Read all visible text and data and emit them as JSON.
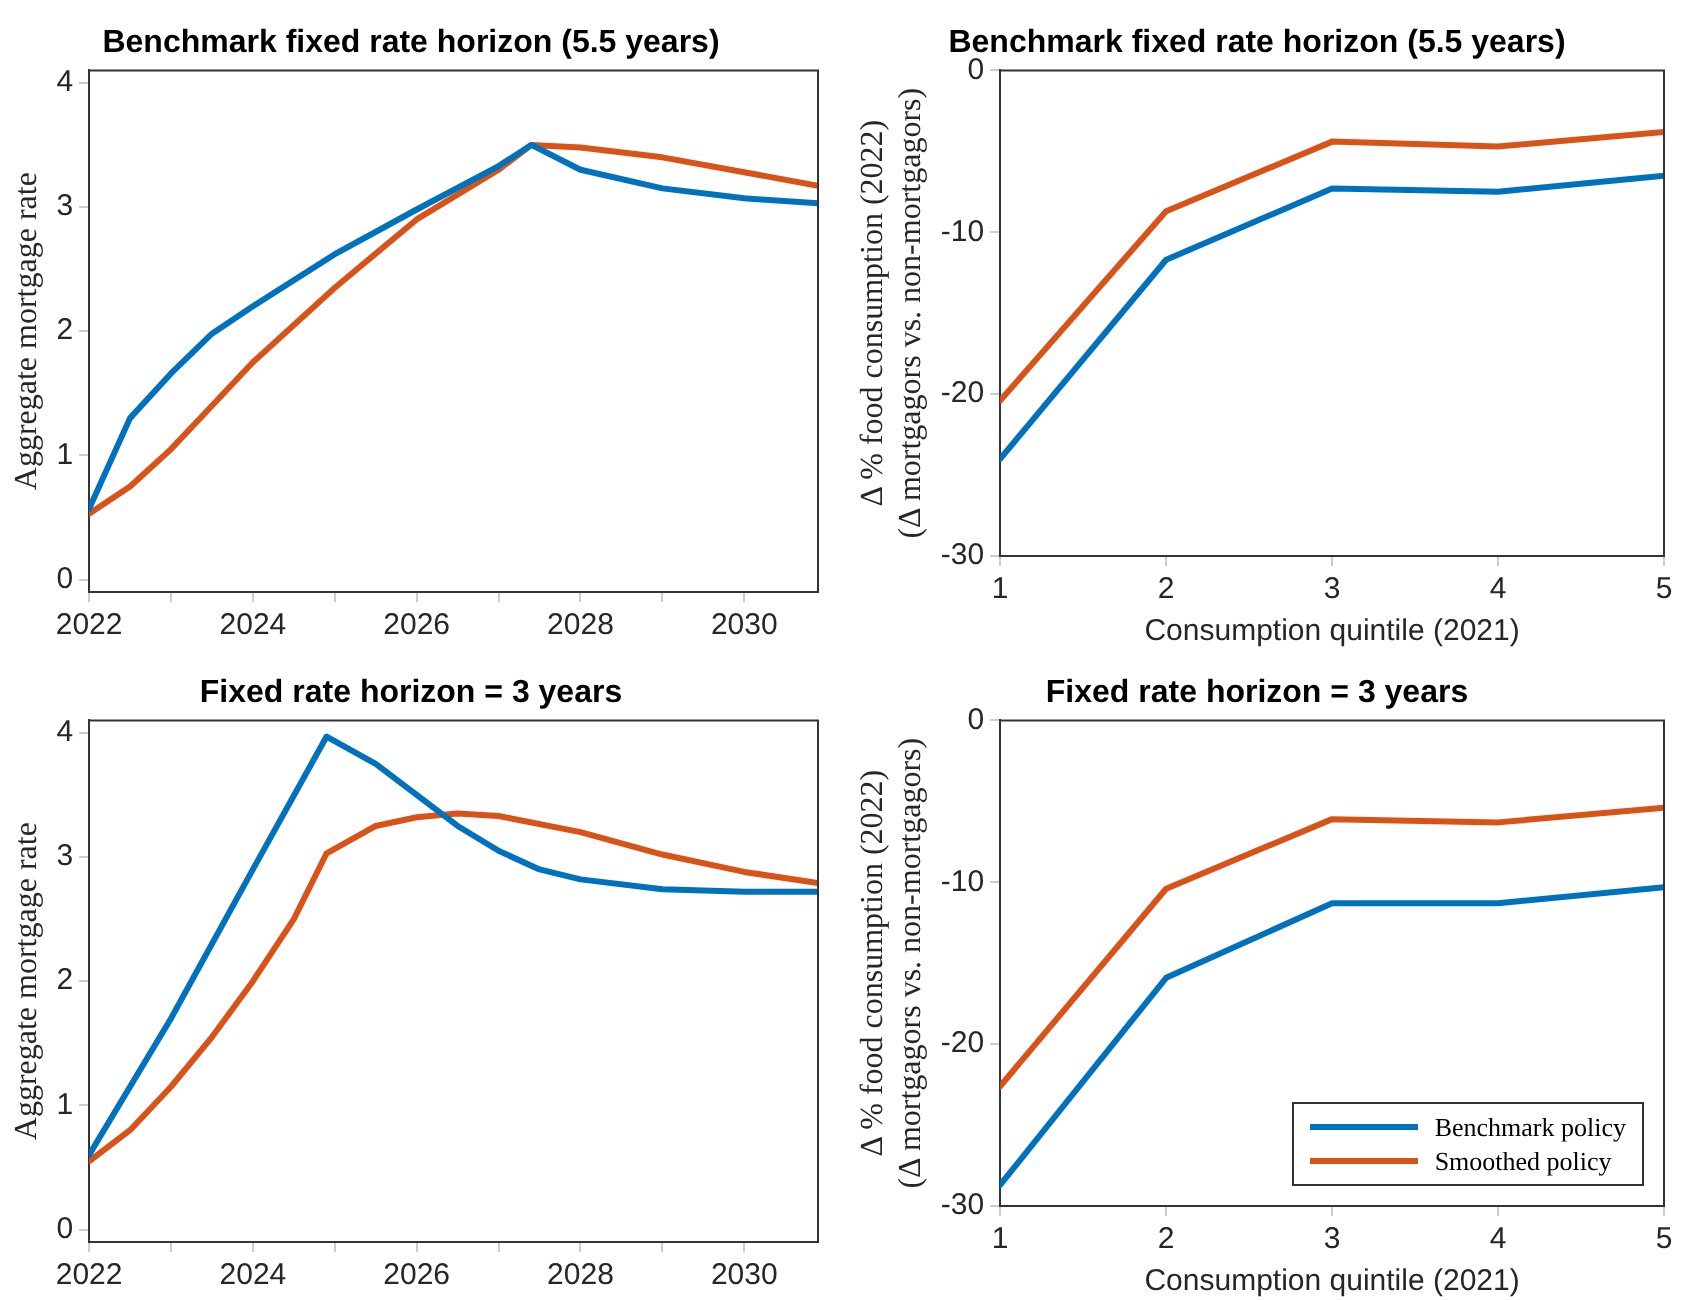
{
  "chart_data": [
    {
      "type": "line",
      "title": "Benchmark fixed rate horizon (5.5 years)",
      "ylabel": "Aggregate mortgage rate",
      "xlim": [
        2022,
        2030.9
      ],
      "xticks": [
        2022,
        {
          "value": 2023,
          "label": null
        },
        2024,
        {
          "value": 2025,
          "label": null
        },
        2026,
        {
          "value": 2027,
          "label": null
        },
        2028,
        {
          "value": 2029,
          "label": null
        },
        2030
      ],
      "ylim": [
        -0.1,
        4.1
      ],
      "yticks": [
        0,
        1,
        2,
        3,
        4
      ],
      "grid": false,
      "legend": false,
      "marker": "none",
      "line_style": "solid",
      "series": [
        {
          "color": "#0072bd",
          "x": [
            2022,
            2022.5,
            2023,
            2023.5,
            2024,
            2025,
            2026,
            2027,
            2027.4,
            2028,
            2029,
            2030,
            2030.9
          ],
          "values": [
            0.57,
            1.3,
            1.66,
            1.98,
            2.2,
            2.62,
            2.98,
            3.33,
            3.5,
            3.3,
            3.15,
            3.07,
            3.03
          ]
        },
        {
          "color": "#d95319",
          "x": [
            2022,
            2022.5,
            2023,
            2023.5,
            2024,
            2025,
            2026,
            2027,
            2027.4,
            2028,
            2029,
            2030,
            2030.9
          ],
          "values": [
            0.53,
            0.75,
            1.05,
            1.4,
            1.75,
            2.35,
            2.9,
            3.3,
            3.5,
            3.48,
            3.4,
            3.28,
            3.17
          ]
        }
      ]
    },
    {
      "type": "line",
      "title": "Benchmark fixed rate horizon (5.5 years)",
      "xlabel": "Consumption quintile (2021)",
      "ylabel": "Δ % food consumption (2022)\n(Δ mortgagors vs. non-mortgagors)",
      "xlim": [
        1,
        5
      ],
      "xticks": [
        1,
        2,
        3,
        4,
        5
      ],
      "ylim": [
        -30,
        0
      ],
      "yticks": [
        -30,
        -20,
        -10,
        0
      ],
      "grid": false,
      "legend": false,
      "marker": "none",
      "line_style": "solid",
      "series": [
        {
          "color": "#0072bd",
          "x": [
            1,
            2,
            3,
            4,
            5
          ],
          "values": [
            -24,
            -11.7,
            -7.3,
            -7.5,
            -6.5
          ]
        },
        {
          "color": "#d95319",
          "x": [
            1,
            2,
            3,
            4,
            5
          ],
          "values": [
            -20.4,
            -8.7,
            -4.4,
            -4.7,
            -3.8
          ]
        }
      ]
    },
    {
      "type": "line",
      "title": "Fixed rate horizon = 3 years",
      "ylabel": "Aggregate mortgage rate",
      "xlim": [
        2022,
        2030.9
      ],
      "xticks": [
        2022,
        {
          "value": 2023,
          "label": null
        },
        2024,
        {
          "value": 2025,
          "label": null
        },
        2026,
        {
          "value": 2027,
          "label": null
        },
        2028,
        {
          "value": 2029,
          "label": null
        },
        2030
      ],
      "ylim": [
        -0.1,
        4.1
      ],
      "yticks": [
        0,
        1,
        2,
        3,
        4
      ],
      "grid": false,
      "legend": false,
      "marker": "none",
      "line_style": "solid",
      "series": [
        {
          "color": "#0072bd",
          "x": [
            2022,
            2023,
            2024,
            2024.9,
            2025.5,
            2026,
            2026.5,
            2027,
            2027.5,
            2028,
            2029,
            2030,
            2030.9
          ],
          "values": [
            0.6,
            1.7,
            2.9,
            3.97,
            3.75,
            3.5,
            3.25,
            3.05,
            2.9,
            2.82,
            2.74,
            2.72,
            2.72
          ]
        },
        {
          "color": "#d95319",
          "x": [
            2022,
            2022.5,
            2023,
            2023.5,
            2024,
            2024.5,
            2024.9,
            2025.5,
            2026,
            2026.5,
            2027,
            2028,
            2029,
            2030,
            2030.9
          ],
          "values": [
            0.55,
            0.8,
            1.15,
            1.55,
            2.0,
            2.5,
            3.03,
            3.25,
            3.32,
            3.35,
            3.33,
            3.2,
            3.02,
            2.88,
            2.79
          ]
        }
      ]
    },
    {
      "type": "line",
      "title": "Fixed rate horizon = 3 years",
      "xlabel": "Consumption quintile (2021)",
      "ylabel": "Δ % food consumption (2022)\n(Δ mortgagors vs. non-mortgagors)",
      "xlim": [
        1,
        5
      ],
      "xticks": [
        1,
        2,
        3,
        4,
        5
      ],
      "ylim": [
        -30,
        0
      ],
      "yticks": [
        -30,
        -20,
        -10,
        0
      ],
      "grid": false,
      "legend": "bottom right",
      "marker": "none",
      "line_style": "solid",
      "series": [
        {
          "name": "Benchmark policy",
          "color": "#0072bd",
          "x": [
            1,
            2,
            3,
            4,
            5
          ],
          "values": [
            -28.7,
            -15.9,
            -11.3,
            -11.3,
            -10.3
          ]
        },
        {
          "name": "Smoothed policy",
          "color": "#d95319",
          "x": [
            1,
            2,
            3,
            4,
            5
          ],
          "values": [
            -22.6,
            -10.4,
            -6.1,
            -6.3,
            -5.4
          ]
        }
      ]
    }
  ]
}
